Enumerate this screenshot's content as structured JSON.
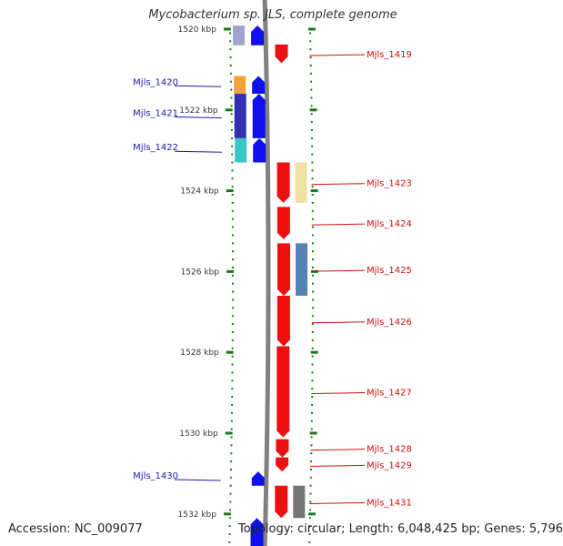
{
  "title": "Mycobacterium sp. JLS, complete genome",
  "footer": {
    "accession": "Accession: NC_009077",
    "topology": "Topology: circular; Length: 6,048,425 bp; Genes: 5,796"
  },
  "colors": {
    "forward_strand": "#1010ee",
    "reverse_strand": "#ee1010",
    "backbone": "#808080",
    "tick": "#1a7a1a",
    "label_left": "#1a1ab0",
    "label_right": "#cc1111"
  },
  "ticks": [
    {
      "kbp": 1520,
      "label": "1520 kbp"
    },
    {
      "kbp": 1522,
      "label": "1522 kbp"
    },
    {
      "kbp": 1524,
      "label": "1524 kbp"
    },
    {
      "kbp": 1526,
      "label": "1526 kbp"
    },
    {
      "kbp": 1528,
      "label": "1528 kbp"
    },
    {
      "kbp": 1530,
      "label": "1530 kbp"
    },
    {
      "kbp": 1532,
      "label": "1532 kbp"
    }
  ],
  "genes": [
    {
      "name": "Mjls_1419",
      "strand": "reverse",
      "start_kbp": 1520.38,
      "end_kbp": 1520.84,
      "cog_color": ""
    },
    {
      "name": "Mjls_1420",
      "strand": "forward",
      "start_kbp": 1521.16,
      "end_kbp": 1521.6,
      "cog_color": "#ee9922"
    },
    {
      "name": "Mjls_1421",
      "strand": "forward",
      "start_kbp": 1521.6,
      "end_kbp": 1522.7,
      "cog_color": "#1a1aa8"
    },
    {
      "name": "Mjls_1422",
      "strand": "forward",
      "start_kbp": 1522.7,
      "end_kbp": 1523.3,
      "cog_color": "#22c0c0"
    },
    {
      "name": "Mjls_1423",
      "strand": "reverse",
      "start_kbp": 1523.3,
      "end_kbp": 1524.3,
      "cog_color": "#eedd99"
    },
    {
      "name": "Mjls_1424",
      "strand": "reverse",
      "start_kbp": 1524.4,
      "end_kbp": 1525.2,
      "cog_color": ""
    },
    {
      "name": "Mjls_1425",
      "strand": "reverse",
      "start_kbp": 1525.3,
      "end_kbp": 1526.6,
      "cog_color": "#4477aa"
    },
    {
      "name": "Mjls_1426",
      "strand": "reverse",
      "start_kbp": 1526.6,
      "end_kbp": 1527.85,
      "cog_color": ""
    },
    {
      "name": "Mjls_1427",
      "strand": "reverse",
      "start_kbp": 1527.85,
      "end_kbp": 1530.1,
      "cog_color": ""
    },
    {
      "name": "Mjls_1428",
      "strand": "reverse",
      "start_kbp": 1530.15,
      "end_kbp": 1530.6,
      "cog_color": ""
    },
    {
      "name": "Mjls_1429",
      "strand": "reverse",
      "start_kbp": 1530.6,
      "end_kbp": 1530.95,
      "cog_color": ""
    },
    {
      "name": "Mjls_1430",
      "strand": "forward",
      "start_kbp": 1530.95,
      "end_kbp": 1531.3,
      "cog_color": ""
    },
    {
      "name": "Mjls_1431",
      "strand": "reverse",
      "start_kbp": 1531.3,
      "end_kbp": 1532.1,
      "cog_color": "#666666"
    },
    {
      "name": "",
      "strand": "forward",
      "start_kbp": 1532.1,
      "end_kbp": 1533.0,
      "cog_color": ""
    },
    {
      "name": "",
      "strand": "forward",
      "start_kbp": 1519.5,
      "end_kbp": 1520.4,
      "cog_color": "#9999cc"
    }
  ]
}
